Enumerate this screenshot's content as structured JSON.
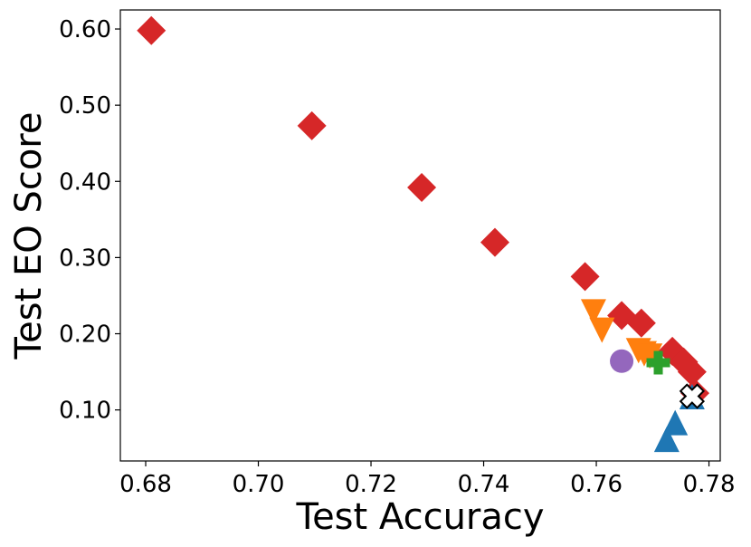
{
  "chart_data": {
    "type": "scatter",
    "xlabel": "Test Accuracy",
    "ylabel": "Test EO Score",
    "xlim": [
      0.6755,
      0.782
    ],
    "ylim": [
      0.033,
      0.625
    ],
    "xticks": [
      0.68,
      0.7,
      0.72,
      0.74,
      0.76,
      0.78
    ],
    "xtick_labels": [
      "0.68",
      "0.70",
      "0.72",
      "0.74",
      "0.76",
      "0.78"
    ],
    "yticks": [
      0.1,
      0.2,
      0.3,
      0.4,
      0.5,
      0.6
    ],
    "ytick_labels": [
      "0.10",
      "0.20",
      "0.30",
      "0.40",
      "0.50",
      "0.60"
    ],
    "grid": false,
    "legend": "none",
    "series": [
      {
        "marker": "diamond",
        "color": "#d62728",
        "points": [
          [
            0.681,
            0.598
          ],
          [
            0.7095,
            0.473
          ],
          [
            0.729,
            0.392
          ],
          [
            0.742,
            0.32
          ],
          [
            0.758,
            0.275
          ],
          [
            0.7645,
            0.224
          ],
          [
            0.768,
            0.214
          ],
          [
            0.7735,
            0.177
          ],
          [
            0.7755,
            0.163
          ],
          [
            0.777,
            0.15
          ],
          [
            0.7775,
            0.122
          ]
        ]
      },
      {
        "marker": "triangle-down",
        "color": "#ff7f0e",
        "points": [
          [
            0.7595,
            0.232
          ],
          [
            0.761,
            0.208
          ],
          [
            0.7675,
            0.181
          ],
          [
            0.7685,
            0.177
          ],
          [
            0.7695,
            0.174
          ]
        ]
      },
      {
        "marker": "triangle-up",
        "color": "#1f77b4",
        "points": [
          [
            0.7725,
            0.058
          ],
          [
            0.774,
            0.08
          ],
          [
            0.777,
            0.114
          ]
        ]
      },
      {
        "marker": "circle",
        "color": "#9467bd",
        "points": [
          [
            0.7645,
            0.164
          ]
        ]
      },
      {
        "marker": "plus",
        "color": "#2ca02c",
        "points": [
          [
            0.771,
            0.162
          ]
        ]
      },
      {
        "marker": "x-filled",
        "color": "#ffffff",
        "edge_color": "#000000",
        "points": [
          [
            0.777,
            0.118
          ]
        ]
      }
    ]
  }
}
